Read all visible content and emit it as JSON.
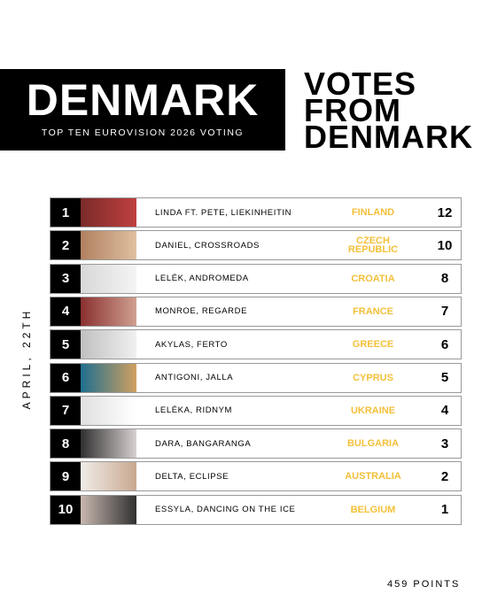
{
  "header": {
    "title": "DENMARK",
    "subtitle": "TOP TEN EUROVISION 2026 VOTING",
    "heading": [
      "VOTES",
      "FROM",
      "DENMARK"
    ]
  },
  "date": "APRIL, 22TH",
  "table": {
    "rows": [
      {
        "rank": 1,
        "entry": "LINDA FT. PETE, LIEKINHEITIN",
        "country": "FINLAND",
        "points": 12
      },
      {
        "rank": 2,
        "entry": "DANIEL, CROSSROADS",
        "country": "CZECH REPUBLIC",
        "points": 10
      },
      {
        "rank": 3,
        "entry": "LELÉK, ANDROMEDA",
        "country": "CROATIA",
        "points": 8
      },
      {
        "rank": 4,
        "entry": "MONROE, REGARDE",
        "country": "FRANCE",
        "points": 7
      },
      {
        "rank": 5,
        "entry": "AKYLAS, FERTO",
        "country": "GREECE",
        "points": 6
      },
      {
        "rank": 6,
        "entry": "ANTIGONI, JALLA",
        "country": "CYPRUS",
        "points": 5
      },
      {
        "rank": 7,
        "entry": "LELÉKA, RIDNYM",
        "country": "UKRAINE",
        "points": 4
      },
      {
        "rank": 8,
        "entry": "DARA, BANGARANGA",
        "country": "BULGARIA",
        "points": 3
      },
      {
        "rank": 9,
        "entry": "DELTA, ECLIPSE",
        "country": "AUSTRALIA",
        "points": 2
      },
      {
        "rank": 10,
        "entry": "ESSYLA, DANCING ON THE ICE",
        "country": "BELGIUM",
        "points": 1
      }
    ]
  },
  "footer": "459 POINTS"
}
